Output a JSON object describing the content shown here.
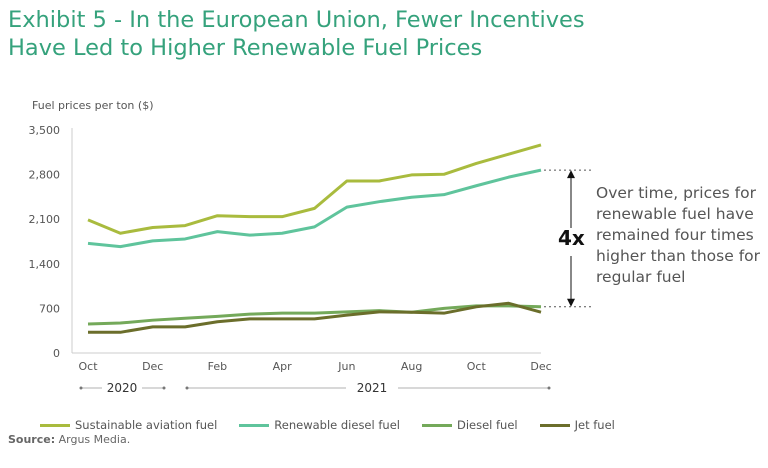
{
  "title": "Exhibit 5 - In the European Union, Fewer Incentives Have Led to Higher Renewable Fuel Prices",
  "source_label": "Source:",
  "source_text": "Argus Media.",
  "annotation": {
    "multiplier": "4x",
    "text": "Over time, prices for renewable fuel have remained four times higher than those for regular fuel"
  },
  "chart_data": {
    "type": "line",
    "ylabel": "Fuel prices per ton ($)",
    "ylim": [
      0,
      3500
    ],
    "yticks": [
      "0",
      "700",
      "1,400",
      "2,100",
      "2,800",
      "3,500"
    ],
    "ytick_values": [
      0,
      700,
      1400,
      2100,
      2800,
      3500
    ],
    "x": [
      "Oct 2020",
      "Nov 2020",
      "Dec 2020",
      "Jan 2021",
      "Feb 2021",
      "Mar 2021",
      "Apr 2021",
      "May 2021",
      "Jun 2021",
      "Jul 2021",
      "Aug 2021",
      "Sep 2021",
      "Oct 2021",
      "Nov 2021",
      "Dec 2021"
    ],
    "xtick_labels": [
      "Oct",
      "",
      "Dec",
      "",
      "Feb",
      "",
      "Apr",
      "",
      "Jun",
      "",
      "Aug",
      "",
      "Oct",
      "",
      "Dec"
    ],
    "year_labels": [
      "2020",
      "2021"
    ],
    "grid": false,
    "legend": "bottom",
    "series": [
      {
        "name": "Sustainable aviation fuel",
        "color": "#a9bb3e",
        "values": [
          2090,
          1880,
          1970,
          2000,
          2155,
          2140,
          2140,
          2270,
          2700,
          2700,
          2795,
          2805,
          2975,
          3120,
          3265
        ]
      },
      {
        "name": "Renewable diesel fuel",
        "color": "#5fc49c",
        "values": [
          1720,
          1670,
          1760,
          1790,
          1905,
          1850,
          1880,
          1980,
          2290,
          2375,
          2445,
          2485,
          2625,
          2760,
          2870
        ]
      },
      {
        "name": "Diesel fuel",
        "color": "#74a95a",
        "values": [
          455,
          470,
          515,
          545,
          575,
          610,
          625,
          625,
          645,
          665,
          640,
          700,
          740,
          740,
          725
        ]
      },
      {
        "name": "Jet fuel",
        "color": "#6b6e2b",
        "values": [
          325,
          325,
          410,
          410,
          490,
          535,
          535,
          535,
          595,
          645,
          640,
          625,
          725,
          780,
          640
        ]
      }
    ]
  }
}
